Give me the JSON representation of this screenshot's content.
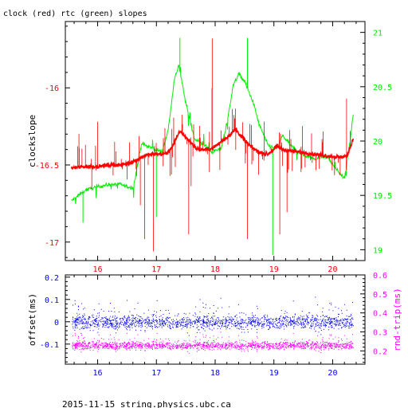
{
  "colors": {
    "clock": "#ff0000",
    "rtc": "#00ee00",
    "offset": "#0000ff",
    "rndtrip": "#ff00ff",
    "axis": "#000000"
  },
  "chart_data": [
    {
      "type": "line",
      "title": "clock (red) rtc (green) slopes",
      "xlabel": "",
      "ylabel": "clockslope",
      "y2label": "",
      "xlim": [
        15.45,
        20.55
      ],
      "ylim": [
        -17.12,
        -15.57
      ],
      "y2lim": [
        18.9,
        21.1
      ],
      "x_ticks": [
        16,
        17,
        18,
        19,
        20
      ],
      "y_ticks": [
        -17,
        -16.5,
        -16
      ],
      "y2_ticks": [
        19,
        19.5,
        20,
        20.5,
        21
      ],
      "x_tick_labels": [
        "16",
        "17",
        "18",
        "19",
        "20"
      ],
      "y_tick_labels": [
        "-17",
        "-16.5",
        "-16"
      ],
      "y2_tick_labels": [
        "19",
        "19.5",
        "20",
        "20.5",
        "21"
      ],
      "grid": false,
      "series": [
        {
          "name": "clock",
          "axis": "left",
          "x": [
            15.55,
            15.8,
            16.0,
            16.2,
            16.4,
            16.6,
            16.8,
            16.95,
            17.1,
            17.2,
            17.3,
            17.4,
            17.5,
            17.7,
            17.9,
            18.0,
            18.2,
            18.35,
            18.5,
            18.6,
            18.75,
            18.9,
            19.05,
            19.15,
            19.3,
            19.5,
            19.7,
            19.9,
            20.1,
            20.25,
            20.35
          ],
          "y": [
            -16.52,
            -16.51,
            -16.51,
            -16.5,
            -16.5,
            -16.48,
            -16.44,
            -16.43,
            -16.43,
            -16.42,
            -16.36,
            -16.28,
            -16.32,
            -16.4,
            -16.4,
            -16.38,
            -16.32,
            -16.27,
            -16.34,
            -16.38,
            -16.42,
            -16.43,
            -16.38,
            -16.4,
            -16.41,
            -16.42,
            -16.43,
            -16.44,
            -16.45,
            -16.44,
            -16.33
          ]
        },
        {
          "name": "rtc",
          "axis": "right",
          "x": [
            15.55,
            15.8,
            16.0,
            16.2,
            16.4,
            16.6,
            16.75,
            16.85,
            17.0,
            17.1,
            17.2,
            17.3,
            17.38,
            17.5,
            17.65,
            17.8,
            17.95,
            18.1,
            18.2,
            18.3,
            18.4,
            18.5,
            18.65,
            18.75,
            18.9,
            19.05,
            19.15,
            19.3,
            19.5,
            19.7,
            19.9,
            20.05,
            20.2,
            20.3,
            20.35
          ],
          "y": [
            19.45,
            19.55,
            19.58,
            19.6,
            19.6,
            19.56,
            19.98,
            19.95,
            19.92,
            19.9,
            20.1,
            20.55,
            20.7,
            20.35,
            20.02,
            19.97,
            19.9,
            19.93,
            20.15,
            20.5,
            20.62,
            20.55,
            20.35,
            20.15,
            19.96,
            19.93,
            20.05,
            19.95,
            19.87,
            19.84,
            19.86,
            19.75,
            19.65,
            20.0,
            20.25
          ]
        }
      ]
    },
    {
      "type": "scatter",
      "title": "",
      "xlabel": "",
      "ylabel": "offset(ms)",
      "y2label": "rnd-trip(ms)",
      "xlim": [
        15.45,
        20.55
      ],
      "ylim": [
        -0.19,
        0.21
      ],
      "y2lim": [
        0.13,
        0.6
      ],
      "x_ticks": [
        16,
        17,
        18,
        19,
        20
      ],
      "y_ticks": [
        -0.1,
        0,
        0.1,
        0.2
      ],
      "y2_ticks": [
        0.2,
        0.3,
        0.4,
        0.5,
        0.6
      ],
      "x_tick_labels": [
        "16",
        "17",
        "18",
        "19",
        "20"
      ],
      "y_tick_labels": [
        "-0.1",
        "0",
        "0.1",
        "0.2"
      ],
      "y2_tick_labels": [
        "0.2",
        "0.3",
        "0.4",
        "0.5",
        "0.6"
      ],
      "grid": false,
      "series": [
        {
          "name": "offset",
          "axis": "left",
          "x_range": [
            15.55,
            20.35
          ],
          "center": 0.0,
          "spread": 0.03
        },
        {
          "name": "rnd-trip",
          "axis": "right",
          "x_range": [
            15.55,
            20.35
          ],
          "center": 0.23,
          "spread": 0.02
        }
      ]
    }
  ],
  "footer": "2015-11-15 string.physics.ubc.ca"
}
